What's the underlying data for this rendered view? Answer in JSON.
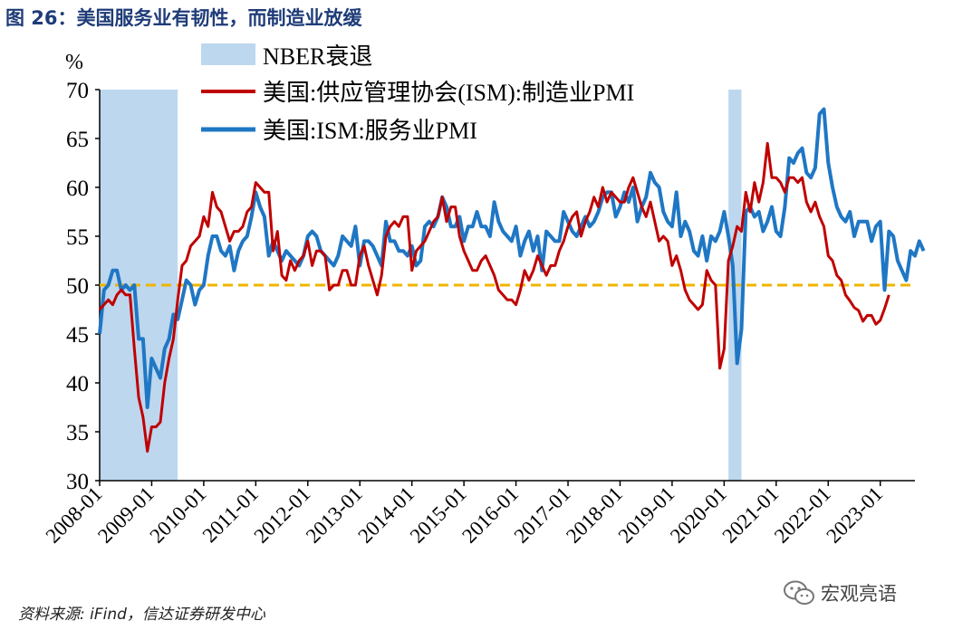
{
  "header": {
    "title": "图 26：美国服务业有韧性，而制造业放缓"
  },
  "footer": {
    "source": "资料来源: iFind，信达证券研发中心",
    "brand": "宏观亮语"
  },
  "icons": {
    "brand_icon": "wechat-icon"
  },
  "colors": {
    "manufacturing": "#c00000",
    "services": "#1f77c4",
    "recession": "#bdd7ee",
    "reference_line": "#f0b400"
  },
  "chart_data": {
    "type": "line",
    "title": "美国服务业有韧性，而制造业放缓",
    "unit_label": "%",
    "ylim": [
      30,
      70
    ],
    "yticks": [
      30,
      35,
      40,
      45,
      50,
      55,
      60,
      65,
      70
    ],
    "xlabels": [
      "2008-01",
      "2009-01",
      "2010-01",
      "2011-01",
      "2012-01",
      "2013-01",
      "2014-01",
      "2015-01",
      "2016-01",
      "2017-01",
      "2018-01",
      "2019-01",
      "2020-01",
      "2021-01",
      "2022-01",
      "2023-01"
    ],
    "x_start": "2008-01",
    "x_end": "2023-09",
    "reference_line": 50,
    "legend": [
      "NBER衰退",
      "美国:供应管理协会(ISM):制造业PMI",
      "美国:ISM:服务业PMI"
    ],
    "legend_placement": "top",
    "recessions": [
      {
        "start": "2008-01",
        "end": "2009-06"
      },
      {
        "start": "2020-02",
        "end": "2020-04"
      }
    ],
    "series": [
      {
        "name": "美国:供应管理协会(ISM):制造业PMI",
        "start": "2008-01",
        "values": [
          47.5,
          48.0,
          48.5,
          48.0,
          49.0,
          49.5,
          49.0,
          49.0,
          43.5,
          38.5,
          36.5,
          33.0,
          35.5,
          35.5,
          36.0,
          40.0,
          42.5,
          44.5,
          48.5,
          52.0,
          52.5,
          54.0,
          54.5,
          55.0,
          57.0,
          56.0,
          59.5,
          58.0,
          57.5,
          56.0,
          54.5,
          55.5,
          55.5,
          56.0,
          57.5,
          58.0,
          60.5,
          60.0,
          59.5,
          59.5,
          53.5,
          55.5,
          51.0,
          50.5,
          52.5,
          51.5,
          52.5,
          53.0,
          54.5,
          52.0,
          53.5,
          53.5,
          53.0,
          49.5,
          50.0,
          50.0,
          51.5,
          51.5,
          50.0,
          50.0,
          53.0,
          54.0,
          52.0,
          50.5,
          49.0,
          51.0,
          55.0,
          56.0,
          56.5,
          56.0,
          57.0,
          57.0,
          51.5,
          53.5,
          54.0,
          54.5,
          55.5,
          56.5,
          57.0,
          59.0,
          56.5,
          58.0,
          58.0,
          55.0,
          53.5,
          52.5,
          51.5,
          51.5,
          52.5,
          53.0,
          52.0,
          51.0,
          49.5,
          49.0,
          48.5,
          48.5,
          48.0,
          49.5,
          51.5,
          50.5,
          51.5,
          53.0,
          52.0,
          51.0,
          52.0,
          52.0,
          53.5,
          54.5,
          56.0,
          57.0,
          57.5,
          55.0,
          56.5,
          57.5,
          59.0,
          58.0,
          60.0,
          58.5,
          59.5,
          59.0,
          58.5,
          58.5,
          60.0,
          61.0,
          59.5,
          58.0,
          57.0,
          58.5,
          56.5,
          54.5,
          55.0,
          54.5,
          52.0,
          53.0,
          51.5,
          49.5,
          48.5,
          48.0,
          47.5,
          48.0,
          51.5,
          50.5,
          50.0,
          41.5,
          43.5,
          52.5,
          54.0,
          56.0,
          55.5,
          59.5,
          57.5,
          60.5,
          58.5,
          60.5,
          64.5,
          61.0,
          61.0,
          60.5,
          59.5,
          61.0,
          61.0,
          60.5,
          61.0,
          58.5,
          57.5,
          58.5,
          57.0,
          56.0,
          53.0,
          52.5,
          51.0,
          50.5,
          49.0,
          48.4,
          47.7,
          47.4,
          46.3,
          46.9,
          46.9,
          46.0,
          46.4,
          47.6,
          49.0
        ]
      },
      {
        "name": "美国:ISM:服务业PMI",
        "start": "2008-01",
        "values": [
          45.0,
          49.5,
          50.0,
          51.5,
          51.5,
          49.5,
          50.0,
          49.5,
          50.0,
          44.5,
          44.5,
          37.5,
          42.5,
          41.5,
          40.5,
          43.5,
          44.5,
          47.0,
          46.5,
          48.5,
          50.5,
          50.0,
          48.0,
          49.5,
          50.0,
          53.0,
          55.0,
          55.0,
          53.5,
          53.0,
          54.0,
          51.5,
          53.5,
          54.5,
          55.0,
          57.0,
          59.5,
          58.0,
          57.0,
          53.0,
          54.5,
          53.5,
          52.5,
          53.5,
          53.0,
          52.5,
          52.0,
          53.0,
          55.0,
          55.5,
          55.0,
          53.5,
          53.0,
          52.5,
          52.0,
          53.0,
          55.0,
          54.5,
          54.0,
          56.0,
          52.0,
          54.5,
          54.5,
          54.0,
          53.0,
          52.0,
          56.5,
          54.5,
          54.5,
          53.5,
          53.5,
          53.0,
          54.0,
          52.0,
          52.5,
          56.0,
          56.5,
          56.0,
          57.0,
          59.0,
          58.0,
          56.0,
          56.0,
          57.0,
          54.5,
          56.0,
          56.0,
          57.5,
          56.0,
          56.0,
          55.0,
          58.5,
          56.5,
          55.5,
          55.0,
          54.5,
          56.0,
          53.0,
          54.5,
          55.5,
          53.5,
          55.0,
          51.5,
          55.5,
          55.0,
          54.5,
          54.5,
          57.5,
          56.5,
          55.5,
          55.0,
          56.0,
          57.0,
          56.0,
          56.5,
          57.5,
          59.0,
          59.5,
          59.5,
          57.0,
          58.0,
          59.5,
          58.5,
          60.0,
          56.5,
          58.0,
          59.0,
          61.5,
          60.5,
          60.0,
          57.5,
          56.5,
          56.0,
          59.5,
          55.0,
          56.5,
          55.5,
          53.5,
          53.0,
          55.0,
          52.5,
          55.0,
          54.5,
          55.5,
          57.5,
          55.0,
          52.0,
          42.0,
          45.5,
          57.5,
          58.0,
          57.0,
          57.5,
          55.5,
          56.5,
          58.0,
          55.5,
          55.0,
          58.0,
          63.0,
          62.5,
          63.5,
          64.0,
          61.5,
          61.0,
          62.0,
          67.5,
          68.0,
          62.5,
          60.0,
          58.0,
          57.0,
          56.5,
          57.5,
          55.0,
          56.5,
          56.5,
          56.5,
          54.5,
          56.0,
          56.5,
          49.5,
          55.5,
          55.0,
          52.5,
          51.5,
          50.5,
          53.5,
          53.0,
          54.5,
          53.5
        ]
      }
    ]
  }
}
